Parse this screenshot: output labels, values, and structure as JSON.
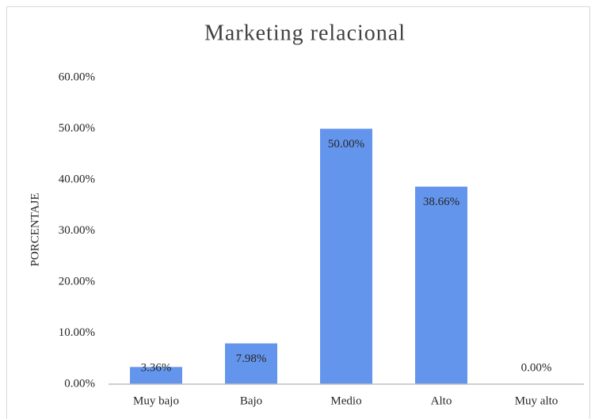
{
  "chart_data": {
    "type": "bar",
    "title": "Marketing relacional",
    "y_label": "PORCENTAJE",
    "categories": [
      "Muy bajo",
      "Bajo",
      "Medio",
      "Alto",
      "Muy alto"
    ],
    "values": [
      3.36,
      7.98,
      50,
      38.66,
      0
    ],
    "value_labels": [
      "3.36%",
      "7.98%",
      "50.00%",
      "38.66%",
      "0.00%"
    ],
    "color": "#6495ed",
    "ylim": [
      0,
      60
    ],
    "yticks": [
      {
        "value": 0,
        "label": "0.00%"
      },
      {
        "value": 10,
        "label": "10.00%"
      },
      {
        "value": 20,
        "label": "20.00%"
      },
      {
        "value": 30,
        "label": "30.00%"
      },
      {
        "value": 40,
        "label": "40.00%"
      },
      {
        "value": 50,
        "label": "50.00%"
      },
      {
        "value": 60,
        "label": "60.00%"
      }
    ],
    "grid": false
  }
}
